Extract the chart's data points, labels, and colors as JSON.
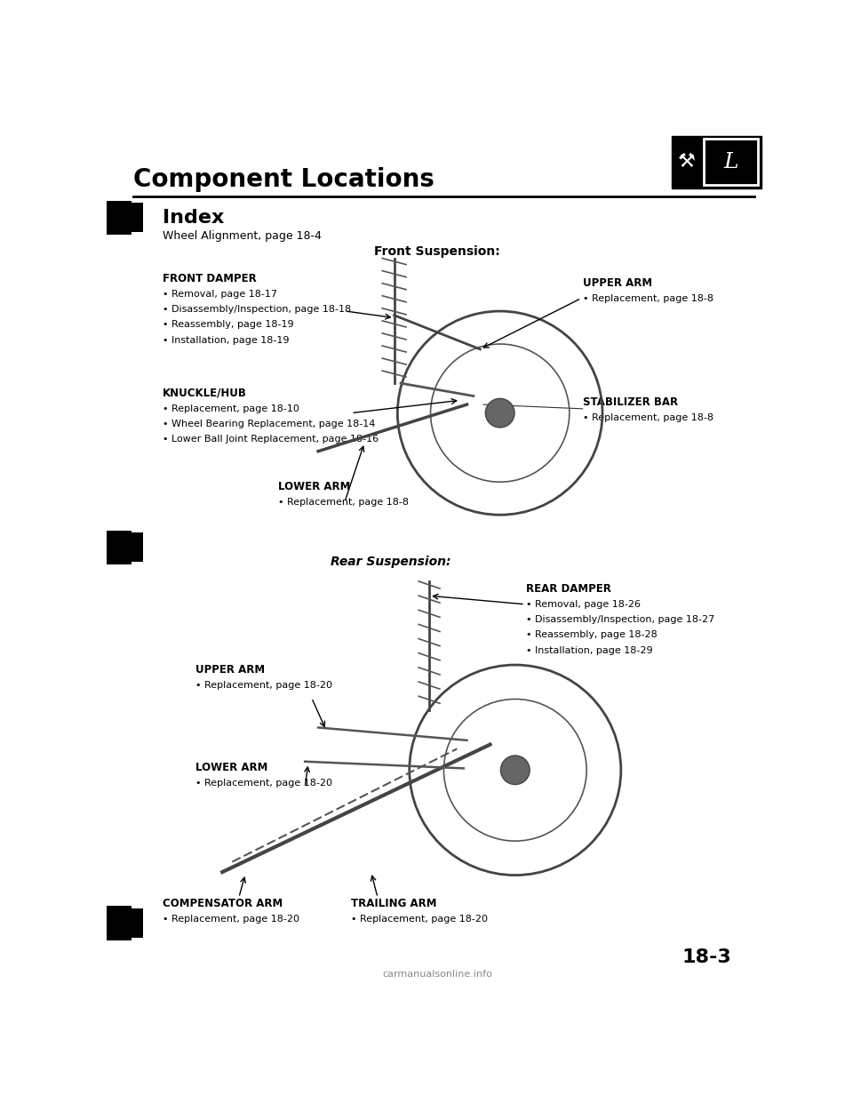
{
  "title": "Component Locations",
  "bg_color": "#ffffff",
  "page_number": "18-3",
  "index_label": "Index",
  "wheel_alignment": "Wheel Alignment, page 18-4",
  "front_suspension_label": "Front Suspension:",
  "rear_suspension_label": "Rear Suspension:",
  "front_damper_name": "FRONT DAMPER",
  "front_damper_bullets": [
    "Removal, page 18-17",
    "Disassembly/Inspection, page 18-18",
    "Reassembly, page 18-19",
    "Installation, page 18-19"
  ],
  "knuckle_name": "KNUCKLE/HUB",
  "knuckle_bullets": [
    "Replacement, page 18-10",
    "Wheel Bearing Replacement, page 18-14",
    "Lower Ball Joint Replacement, page 18-16"
  ],
  "lower_arm_front_name": "LOWER ARM",
  "lower_arm_front_bullets": [
    "Replacement, page 18-8"
  ],
  "upper_arm_front_name": "UPPER ARM",
  "upper_arm_front_bullets": [
    "Replacement, page 18-8"
  ],
  "stabilizer_name": "STABILIZER BAR",
  "stabilizer_bullets": [
    "Replacement, page 18-8"
  ],
  "rear_damper_name": "REAR DAMPER",
  "rear_damper_bullets": [
    "Removal, page 18-26",
    "Disassembly/Inspection, page 18-27",
    "Reassembly, page 18-28",
    "Installation, page 18-29"
  ],
  "upper_arm_rear_name": "UPPER ARM",
  "upper_arm_rear_bullets": [
    "Replacement, page 18-20"
  ],
  "lower_arm_rear_name": "LOWER ARM",
  "lower_arm_rear_bullets": [
    "Replacement, page 18-20"
  ],
  "compensator_name": "COMPENSATOR ARM",
  "compensator_bullets": [
    "Replacement, page 18-20"
  ],
  "trailing_name": "TRAILING ARM",
  "trailing_bullets": [
    "Replacement, page 18-20"
  ],
  "watermark": "carmanualsonline.info",
  "tab_color": "#000000",
  "text_color": "#000000",
  "line_color": "#333333"
}
